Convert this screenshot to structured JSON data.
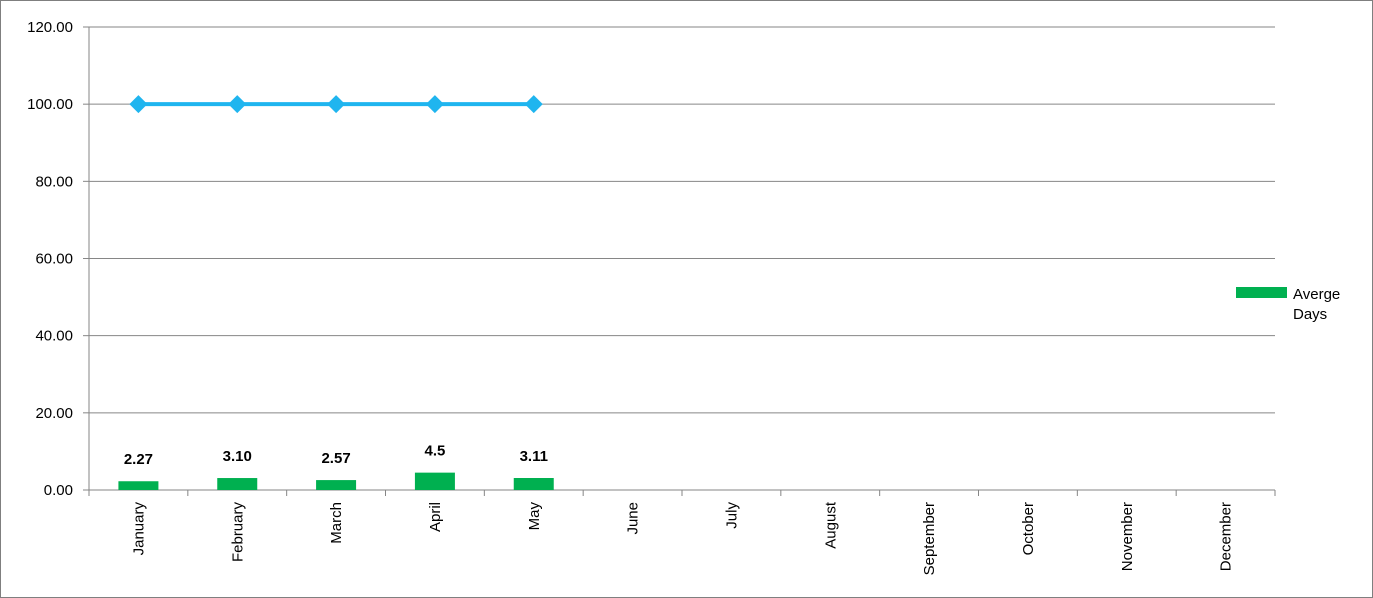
{
  "chart_data": {
    "type": "bar",
    "categories": [
      "January",
      "February",
      "March",
      "April",
      "May",
      "June",
      "July",
      "August",
      "September",
      "October",
      "November",
      "December"
    ],
    "series": [
      {
        "name": "Averge Days",
        "type": "bar",
        "color": "#00b050",
        "values": [
          2.27,
          3.1,
          2.57,
          4.5,
          3.11,
          null,
          null,
          null,
          null,
          null,
          null,
          null
        ],
        "data_labels": [
          "2.27",
          "3.10",
          "2.57",
          "4.5",
          "3.11",
          "",
          "",
          "",
          "",
          "",
          "",
          ""
        ]
      },
      {
        "type": "line",
        "color": "#1fb5ef",
        "marker": "diamond",
        "values": [
          100,
          100,
          100,
          100,
          100,
          null,
          null,
          null,
          null,
          null,
          null,
          null
        ]
      }
    ],
    "y_ticks": [
      "0.00",
      "20.00",
      "40.00",
      "60.00",
      "80.00",
      "100.00",
      "120.00"
    ],
    "ylim": [
      0,
      120
    ],
    "grid": true,
    "legend_position": "right",
    "legend": {
      "entries": [
        {
          "series": 0,
          "lines": [
            "Averge",
            "Days"
          ]
        }
      ]
    }
  }
}
